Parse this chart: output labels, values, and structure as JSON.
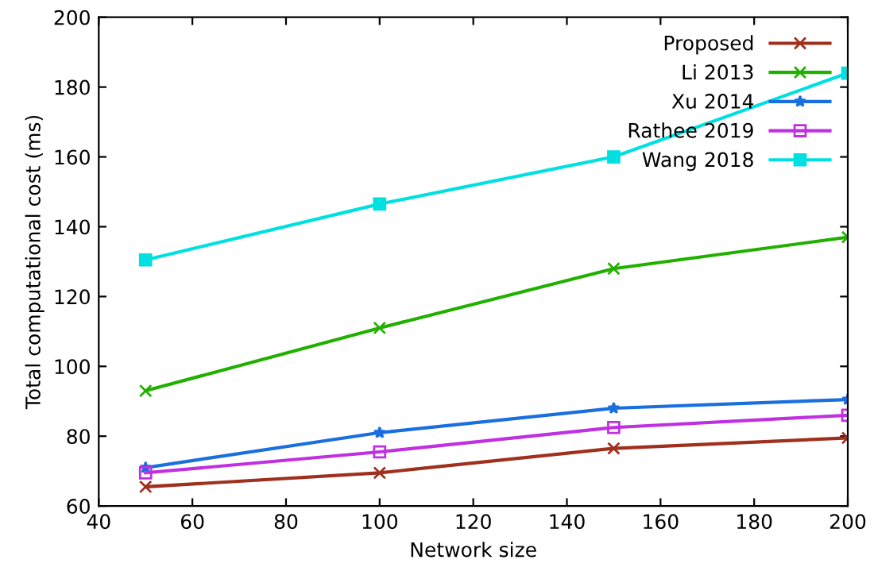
{
  "chart_data": {
    "type": "line",
    "xlabel": "Network size",
    "ylabel": "Total computational cost (ms)",
    "x": [
      50,
      100,
      150,
      200
    ],
    "series": [
      {
        "name": "Proposed",
        "color": "#a0301e",
        "marker": "cross",
        "values": [
          65.5,
          69.5,
          76.5,
          79.5
        ]
      },
      {
        "name": "Li 2013",
        "color": "#22b000",
        "marker": "cross",
        "values": [
          93,
          111,
          128,
          137
        ]
      },
      {
        "name": "Xu 2014",
        "color": "#1a6fdf",
        "marker": "star",
        "values": [
          71,
          81,
          88,
          90.5
        ]
      },
      {
        "name": "Rathee 2019",
        "color": "#c030e0",
        "marker": "square",
        "values": [
          69.5,
          75.5,
          82.5,
          86
        ]
      },
      {
        "name": "Wang 2018",
        "color": "#00e0e0",
        "marker": "square",
        "values": [
          130.5,
          146.5,
          160,
          184
        ]
      }
    ],
    "xlim": [
      40,
      200
    ],
    "ylim": [
      60,
      200
    ],
    "xticks": [
      40,
      60,
      80,
      100,
      120,
      140,
      160,
      180,
      200
    ],
    "yticks": [
      60,
      80,
      100,
      120,
      140,
      160,
      180,
      200
    ],
    "grid": false,
    "legend": "top right",
    "line_style": "solid"
  }
}
